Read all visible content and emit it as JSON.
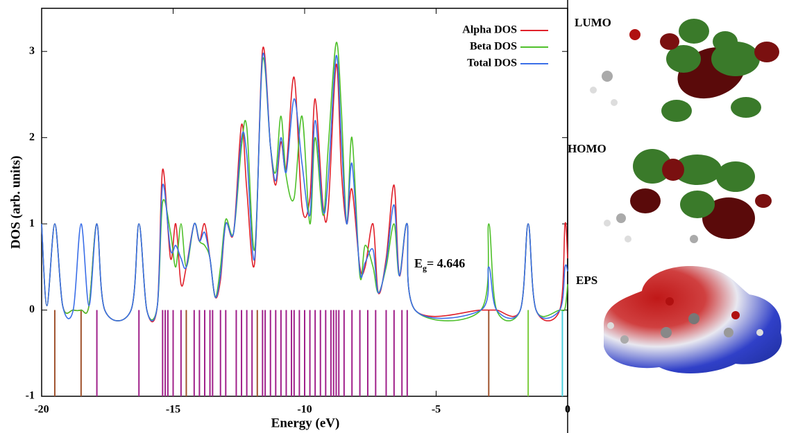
{
  "chart_data": {
    "type": "line",
    "ylabel": "DOS (arb. units)",
    "xlabel": "Energy (eV)",
    "xlim": [
      -20,
      0
    ],
    "xticks": [
      -20,
      -15,
      -10,
      -5,
      0
    ],
    "ylim": [
      -1,
      3.5
    ],
    "yticks": [
      -1,
      0,
      1,
      2,
      3
    ],
    "legend": "top-right",
    "x": [
      -20,
      -19.8,
      -19.5,
      -19.2,
      -18.8,
      -18.5,
      -18.2,
      -17.9,
      -17.6,
      -16.6,
      -16.3,
      -16.0,
      -15.6,
      -15.4,
      -15.1,
      -14.9,
      -14.7,
      -14.5,
      -14.2,
      -14.0,
      -13.8,
      -13.6,
      -13.4,
      -13.2,
      -13.0,
      -12.7,
      -12.4,
      -12.2,
      -11.9,
      -11.6,
      -11.3,
      -11.1,
      -10.9,
      -10.7,
      -10.4,
      -10.1,
      -9.8,
      -9.6,
      -9.3,
      -9.1,
      -8.8,
      -8.6,
      -8.4,
      -8.2,
      -7.9,
      -7.7,
      -7.4,
      -7.2,
      -6.9,
      -6.6,
      -6.4,
      -6.1,
      -5.8,
      -3.3,
      -3.0,
      -2.7,
      -1.8,
      -1.5,
      -1.2,
      -0.3,
      -0.1,
      0
    ],
    "series": [
      {
        "name": "Alpha DOS",
        "color": "#e0202a",
        "values": [
          1,
          0.05,
          1,
          0.05,
          0,
          0,
          0.05,
          1,
          0,
          0,
          1,
          0,
          0.05,
          1.63,
          0.6,
          1,
          0.3,
          0.5,
          1,
          0.8,
          1,
          0.6,
          0.15,
          0.35,
          1,
          0.9,
          2.15,
          1.4,
          0.55,
          3.02,
          1.9,
          1.45,
          1.95,
          1.65,
          2.7,
          1.2,
          1.3,
          2.45,
          1.2,
          1.2,
          2.85,
          1.6,
          1,
          1.4,
          0.5,
          0.5,
          1,
          0.2,
          0.6,
          1.45,
          0.4,
          1,
          0,
          0,
          0,
          0,
          0,
          1,
          0,
          0,
          1,
          0.6
        ]
      },
      {
        "name": "Beta DOS",
        "color": "#4fc02a",
        "values": [
          1,
          0.05,
          1,
          0.05,
          0,
          0,
          0.05,
          1,
          0,
          0,
          1,
          0,
          0.05,
          1.25,
          0.9,
          0.5,
          1,
          0.5,
          1,
          0.8,
          0.75,
          0.6,
          0.15,
          0.5,
          1.05,
          0.9,
          1.9,
          2.12,
          0.7,
          2.9,
          1.9,
          1.6,
          2.25,
          1.55,
          1.3,
          2.25,
          1,
          2,
          1.1,
          1.9,
          3.1,
          2.3,
          1,
          2,
          0.4,
          0.75,
          0.5,
          0.2,
          0.5,
          1,
          0.4,
          1,
          0,
          0,
          1,
          0,
          0,
          1,
          0,
          0,
          0.02,
          0.3
        ]
      },
      {
        "name": "Total DOS",
        "color": "#3a6ee8",
        "values": [
          1,
          0.05,
          1,
          0.05,
          0,
          1,
          0.05,
          1,
          0,
          0,
          1,
          0,
          0.05,
          1.45,
          0.7,
          0.75,
          0.6,
          0.5,
          1,
          0.8,
          0.9,
          0.6,
          0.15,
          0.4,
          1,
          0.9,
          2,
          1.8,
          0.6,
          2.95,
          1.9,
          1.5,
          2,
          1.6,
          2.45,
          1.7,
          1.1,
          2.2,
          1.15,
          1.55,
          2.95,
          1.95,
          1,
          1.7,
          0.45,
          0.55,
          0.7,
          0.2,
          0.55,
          1.22,
          0.4,
          1,
          0,
          0,
          0.5,
          0,
          0,
          1,
          0,
          0,
          0.5,
          0.45
        ]
      }
    ],
    "sticks": [
      {
        "color": "#a0522d",
        "x": [
          -19.5,
          -18.5,
          -14.5,
          -11.8,
          -3.0
        ]
      },
      {
        "color": "#a0208a",
        "x": [
          -17.9,
          -16.3,
          -15.4,
          -15.3,
          -15.2,
          -15.0,
          -14.7,
          -14.2,
          -14.0,
          -13.8,
          -13.6,
          -13.5,
          -13.2,
          -13.0,
          -12.6,
          -12.4,
          -12.2,
          -12.0,
          -11.6,
          -11.5,
          -11.3,
          -11.1,
          -10.9,
          -10.7,
          -10.5,
          -10.4,
          -10.2,
          -10.0,
          -9.8,
          -9.6,
          -9.4,
          -9.2,
          -9.0,
          -8.9,
          -8.8,
          -8.7,
          -8.5,
          -8.2,
          -7.9,
          -7.6,
          -7.3,
          -6.9,
          -6.6,
          -6.3,
          -6.1
        ]
      },
      {
        "color": "#7acc3a",
        "x": [
          -1.5
        ]
      },
      {
        "color": "#4ad0e0",
        "x": [
          -0.2
        ]
      }
    ],
    "annotation": {
      "main": "E",
      "sub": "g",
      "rest": "= 4.646"
    }
  },
  "panels": [
    "LUMO",
    "HOMO",
    "EPS"
  ]
}
